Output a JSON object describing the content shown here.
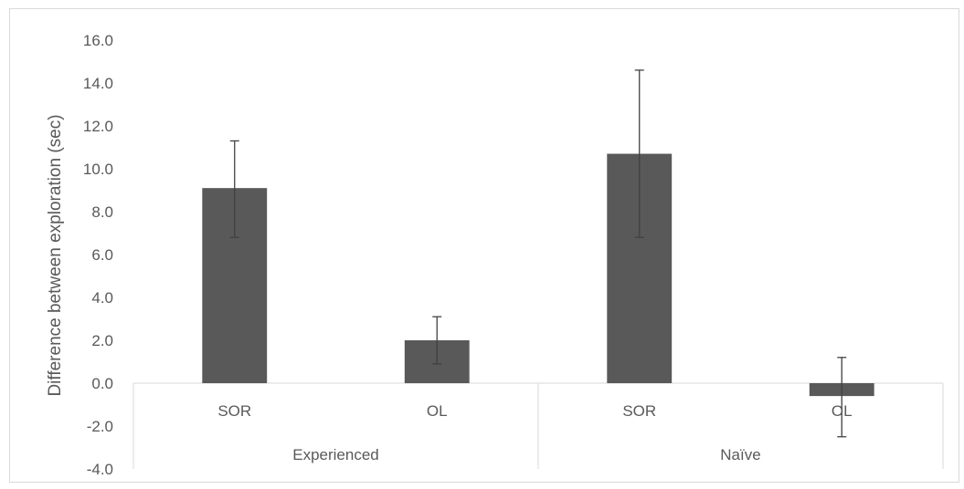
{
  "chart_data": {
    "type": "bar",
    "title": "",
    "xlabel": "",
    "ylabel": "Difference between exploration (sec)",
    "ylim": [
      -4.0,
      16.0
    ],
    "yticks": [
      "-4.0",
      "-2.0",
      "0.0",
      "2.0",
      "4.0",
      "6.0",
      "8.0",
      "10.0",
      "12.0",
      "14.0",
      "16.0"
    ],
    "groups": [
      {
        "label": "Experienced",
        "categories": [
          "SOR",
          "OL"
        ]
      },
      {
        "label": "Naïve",
        "categories": [
          "SOR",
          "OL"
        ]
      }
    ],
    "categories": [
      "SOR",
      "OL",
      "SOR",
      "OL"
    ],
    "values": [
      9.1,
      2.0,
      10.7,
      -0.6
    ],
    "error_plus": [
      2.2,
      1.1,
      3.9,
      1.8
    ],
    "error_minus": [
      2.3,
      1.1,
      3.9,
      1.9
    ],
    "grid": false,
    "legend": "none",
    "colors": {
      "bar": "#595959",
      "error": "#404040",
      "axis": "#d9d9d9",
      "text": "#595959"
    }
  }
}
